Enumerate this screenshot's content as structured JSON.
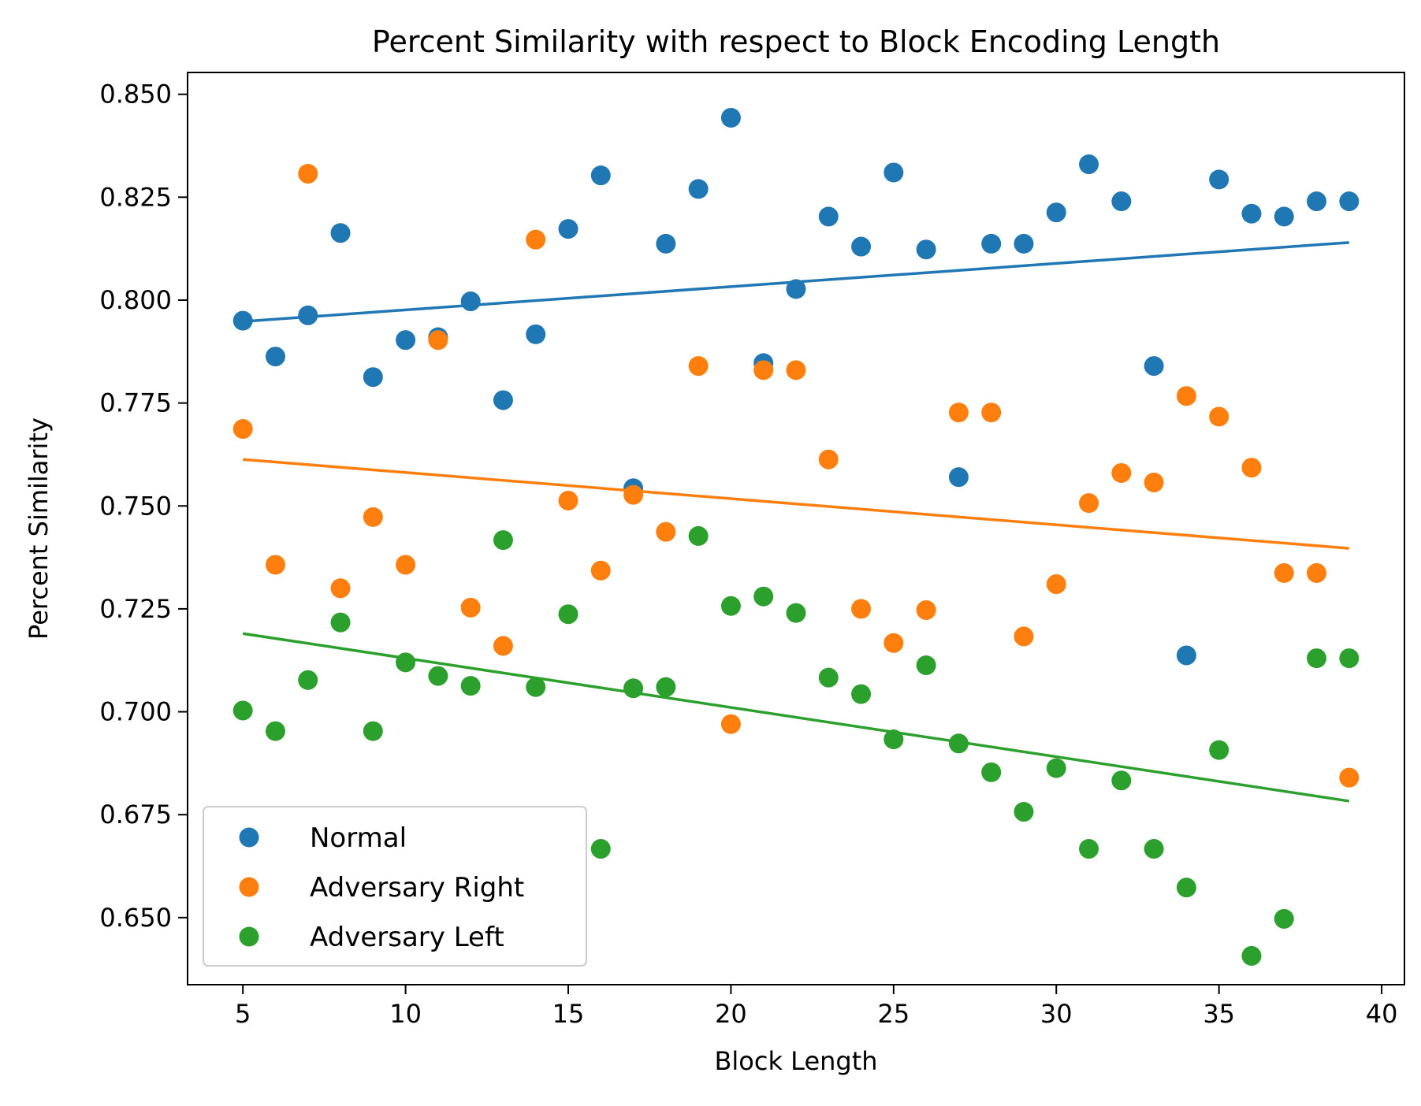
{
  "chart_data": {
    "type": "scatter",
    "title": "Percent Similarity with respect to Block Encoding Length",
    "xlabel": "Block Length",
    "ylabel": "Percent Similarity",
    "xlim": [
      3.3,
      40.7
    ],
    "ylim": [
      0.6337,
      0.8553
    ],
    "xticks": [
      5,
      10,
      15,
      20,
      25,
      30,
      35,
      40
    ],
    "yticks": [
      0.65,
      0.675,
      0.7,
      0.725,
      0.75,
      0.775,
      0.8,
      0.825,
      0.85
    ],
    "xtick_labels": [
      "5",
      "10",
      "15",
      "20",
      "25",
      "30",
      "35",
      "40"
    ],
    "ytick_labels": [
      "0.650",
      "0.675",
      "0.700",
      "0.725",
      "0.750",
      "0.775",
      "0.800",
      "0.825",
      "0.850"
    ],
    "grid": false,
    "legend_position": "lower-left",
    "x": [
      5,
      6,
      7,
      8,
      9,
      10,
      11,
      12,
      13,
      14,
      15,
      16,
      17,
      18,
      19,
      20,
      21,
      22,
      23,
      24,
      25,
      26,
      27,
      28,
      29,
      30,
      31,
      32,
      33,
      34,
      35,
      36,
      37,
      38,
      39
    ],
    "series": [
      {
        "name": "Normal",
        "color": "#1f77b4",
        "values": [
          0.795,
          0.7863,
          0.7963,
          0.8163,
          0.7813,
          0.7903,
          0.791,
          0.7997,
          0.7757,
          0.7917,
          0.8173,
          0.8303,
          0.7543,
          0.8137,
          0.827,
          0.8443,
          0.7847,
          0.8027,
          0.8203,
          0.813,
          0.831,
          0.8123,
          0.757,
          0.8137,
          0.8137,
          0.8213,
          0.833,
          0.824,
          0.784,
          0.7137,
          0.8293,
          0.821,
          0.8203,
          0.824,
          0.824
        ],
        "trend": [
          0.7948,
          0.814
        ]
      },
      {
        "name": "Adversary Right",
        "color": "#ff7f0e",
        "values": [
          0.7687,
          0.7357,
          0.8307,
          0.73,
          0.7473,
          0.7357,
          0.7903,
          0.7253,
          0.716,
          0.8147,
          0.7513,
          0.7343,
          0.7527,
          0.7437,
          0.784,
          0.697,
          0.783,
          0.783,
          0.7613,
          0.725,
          0.7167,
          0.7247,
          0.7727,
          0.7727,
          0.7183,
          0.731,
          0.7507,
          0.758,
          0.7557,
          0.7767,
          0.7717,
          0.7593,
          0.7337,
          0.7337,
          0.684
        ],
        "trend": [
          0.7613,
          0.7397
        ]
      },
      {
        "name": "Adversary Left",
        "color": "#2ca02c",
        "values": [
          0.7003,
          0.6953,
          0.7077,
          0.7217,
          0.6953,
          0.712,
          0.7087,
          0.7063,
          0.7417,
          0.706,
          0.7237,
          0.6667,
          0.7057,
          0.706,
          0.7427,
          0.7257,
          0.728,
          0.724,
          0.7083,
          0.7043,
          0.6933,
          0.7113,
          0.6923,
          0.6853,
          0.6757,
          0.6863,
          0.6667,
          0.6833,
          0.6667,
          0.6573,
          0.6907,
          0.6407,
          0.6497,
          0.713,
          0.713
        ],
        "trend": [
          0.719,
          0.6783
        ]
      }
    ]
  }
}
